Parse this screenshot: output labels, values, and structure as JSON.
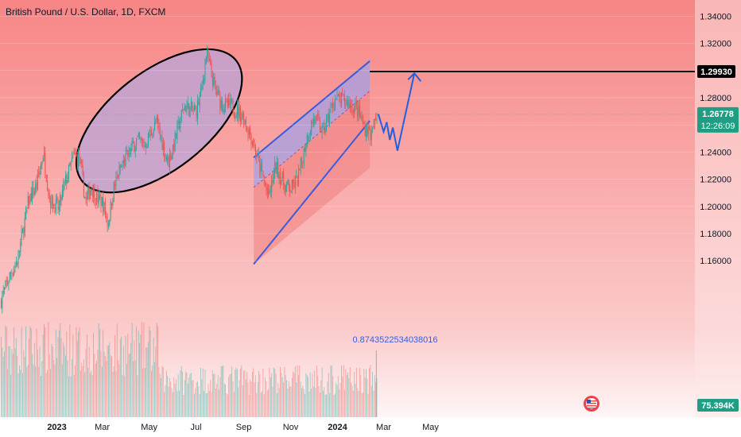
{
  "header": {
    "title": "British Pound / U.S. Dollar, 1D, FXCM"
  },
  "colors": {
    "up": "#26a69a",
    "down": "#ef5350",
    "channel_line": "#3b5bdb",
    "channel_top_fill": "#9fa0e8",
    "channel_bottom_fill": "#f08080",
    "ellipse_fill": "#b9a4d8",
    "background_top": "#f78585",
    "background_bottom": "#ffffff",
    "last_price_tag": "#1e9e83",
    "target_tag": "#000000",
    "volume_tag": "#1e9e83"
  },
  "price_tags": {
    "target": "1.29930",
    "last_price": "1.26778",
    "countdown": "12:26:09",
    "volume": "75.394K"
  },
  "annotations": {
    "ratio_label": "0.8743522534038016"
  },
  "chart_data": {
    "type": "candlestick",
    "title": "British Pound / U.S. Dollar, 1D, FXCM",
    "ylim": [
      1.15,
      1.35
    ],
    "y_ticks": [
      "1.34000",
      "1.32000",
      "1.30000",
      "1.28000",
      "1.26000",
      "1.24000",
      "1.22000",
      "1.20000",
      "1.18000",
      "1.16000"
    ],
    "y_tick_values": [
      1.34,
      1.32,
      1.3,
      1.28,
      1.26,
      1.24,
      1.22,
      1.2,
      1.18,
      1.16
    ],
    "x_ticks": [
      "2023",
      "Mar",
      "May",
      "Jul",
      "Sep",
      "Nov",
      "2024",
      "Mar",
      "May"
    ],
    "x_tick_dates": [
      "2023-01-01",
      "2023-03-01",
      "2023-05-01",
      "2023-07-01",
      "2023-09-01",
      "2023-11-01",
      "2024-01-01",
      "2024-03-01",
      "2024-05-01"
    ],
    "x_range": [
      "2022-10-19",
      "2024-05-15"
    ],
    "price_path": [
      [
        "2022-10-19",
        1.13
      ],
      [
        "2022-11-01",
        1.15
      ],
      [
        "2022-11-10",
        1.16
      ],
      [
        "2022-11-25",
        1.205
      ],
      [
        "2022-12-05",
        1.215
      ],
      [
        "2022-12-14",
        1.24
      ],
      [
        "2022-12-22",
        1.205
      ],
      [
        "2023-01-03",
        1.198
      ],
      [
        "2023-01-10",
        1.215
      ],
      [
        "2023-01-23",
        1.238
      ],
      [
        "2023-01-30",
        1.234
      ],
      [
        "2023-02-07",
        1.203
      ],
      [
        "2023-02-14",
        1.215
      ],
      [
        "2023-02-22",
        1.205
      ],
      [
        "2023-03-01",
        1.203
      ],
      [
        "2023-03-08",
        1.187
      ],
      [
        "2023-03-15",
        1.212
      ],
      [
        "2023-03-23",
        1.226
      ],
      [
        "2023-04-03",
        1.238
      ],
      [
        "2023-04-14",
        1.249
      ],
      [
        "2023-04-25",
        1.245
      ],
      [
        "2023-05-10",
        1.262
      ],
      [
        "2023-05-25",
        1.232
      ],
      [
        "2023-06-01",
        1.245
      ],
      [
        "2023-06-15",
        1.274
      ],
      [
        "2023-06-22",
        1.272
      ],
      [
        "2023-06-30",
        1.269
      ],
      [
        "2023-07-07",
        1.283
      ],
      [
        "2023-07-14",
        1.313
      ],
      [
        "2023-07-25",
        1.286
      ],
      [
        "2023-08-04",
        1.275
      ],
      [
        "2023-08-18",
        1.273
      ],
      [
        "2023-08-31",
        1.266
      ],
      [
        "2023-09-12",
        1.249
      ],
      [
        "2023-09-22",
        1.228
      ],
      [
        "2023-10-03",
        1.206
      ],
      [
        "2023-10-12",
        1.23
      ],
      [
        "2023-10-24",
        1.215
      ],
      [
        "2023-11-01",
        1.213
      ],
      [
        "2023-11-10",
        1.22
      ],
      [
        "2023-11-22",
        1.252
      ],
      [
        "2023-12-01",
        1.265
      ],
      [
        "2023-12-13",
        1.255
      ],
      [
        "2023-12-28",
        1.279
      ],
      [
        "2024-01-12",
        1.277
      ],
      [
        "2024-01-26",
        1.271
      ],
      [
        "2024-02-05",
        1.258
      ],
      [
        "2024-02-14",
        1.253
      ],
      [
        "2024-02-22",
        1.268
      ]
    ],
    "projection": [
      [
        "2024-02-23",
        1.268
      ],
      [
        "2024-03-01",
        1.255
      ],
      [
        "2024-03-05",
        1.262
      ],
      [
        "2024-03-09",
        1.249
      ],
      [
        "2024-03-13",
        1.258
      ],
      [
        "2024-03-19",
        1.241
      ],
      [
        "2024-04-10",
        1.298
      ]
    ],
    "channel": {
      "upper_start": [
        "2023-09-14",
        1.236
      ],
      "upper_end": [
        "2024-02-12",
        1.307
      ],
      "lower_start": [
        "2023-09-14",
        1.192
      ],
      "lower_end": [
        "2024-02-12",
        1.263
      ]
    },
    "target_line": {
      "price": 1.2993,
      "start": "2024-02-12"
    },
    "ellipse": {
      "center": [
        "2023-05-14",
        1.263
      ],
      "label": ""
    }
  }
}
